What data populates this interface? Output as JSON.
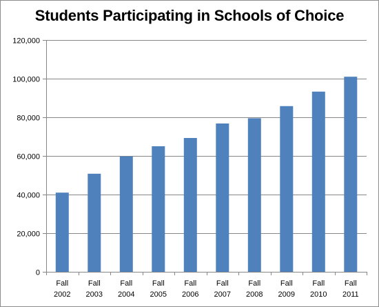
{
  "chart_data": {
    "type": "bar",
    "title": "Students Participating in Schools of Choice",
    "xlabel": "",
    "ylabel": "",
    "categories": [
      [
        "Fall",
        "2002"
      ],
      [
        "Fall",
        "2003"
      ],
      [
        "Fall",
        "2004"
      ],
      [
        "Fall",
        "2005"
      ],
      [
        "Fall",
        "2006"
      ],
      [
        "Fall",
        "2007"
      ],
      [
        "Fall",
        "2008"
      ],
      [
        "Fall",
        "2009"
      ],
      [
        "Fall",
        "2010"
      ],
      [
        "Fall",
        "2011"
      ]
    ],
    "values": [
      41000,
      50800,
      59800,
      65000,
      69300,
      76800,
      79500,
      85800,
      93300,
      101000
    ],
    "ylim": [
      0,
      120000
    ],
    "yticks": [
      0,
      20000,
      40000,
      60000,
      80000,
      100000,
      120000
    ],
    "ytick_labels": [
      "0",
      "20,000",
      "40,000",
      "60,000",
      "80,000",
      "100,000",
      "120,000"
    ],
    "grid": true,
    "legend": "none",
    "bar_color": "#4f81bd",
    "grid_color": "#868686"
  }
}
